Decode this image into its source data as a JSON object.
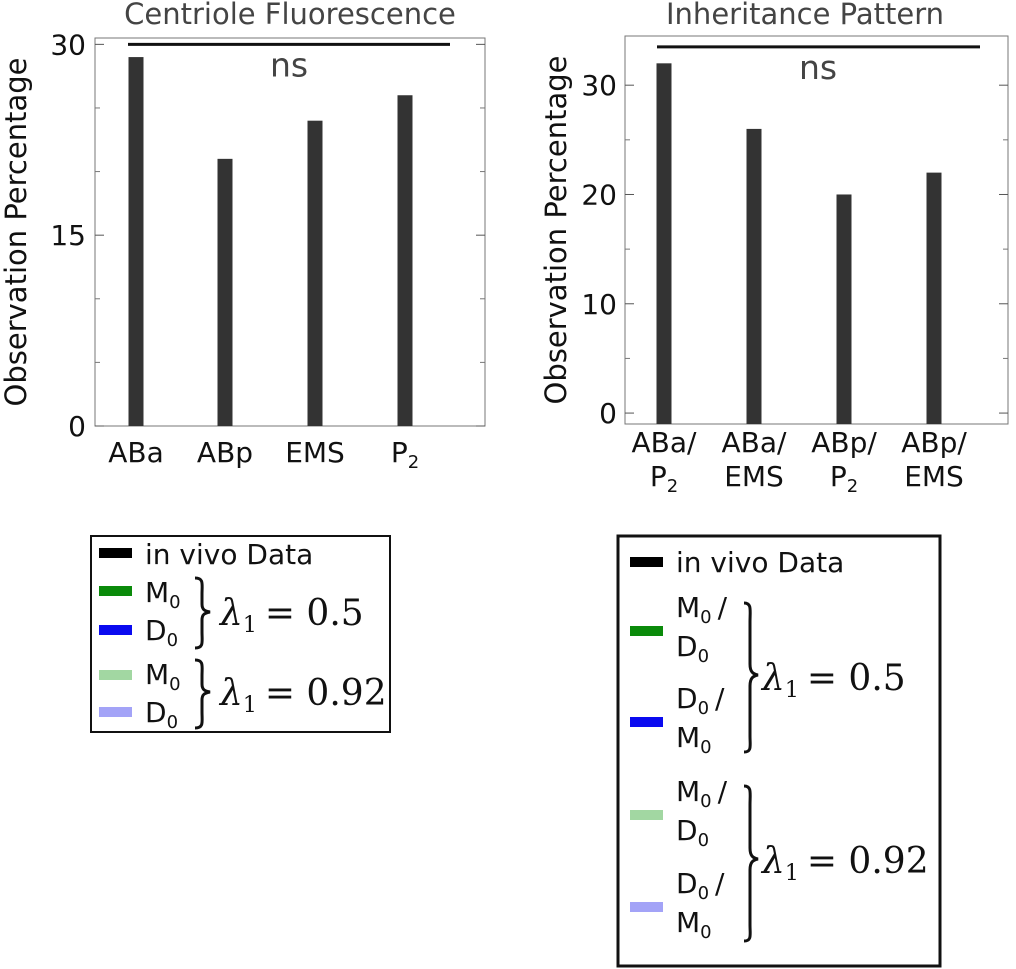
{
  "chart_data": [
    {
      "type": "bar",
      "title": "Centriole Fluorescence",
      "ylabel": "Observation Percentage",
      "xlabel": "",
      "categories": [
        "ABa",
        "ABp",
        "EMS",
        "P2"
      ],
      "category_labels": [
        {
          "line1": "ABa",
          "sub": ""
        },
        {
          "line1": "ABp",
          "sub": ""
        },
        {
          "line1": "EMS",
          "sub": ""
        },
        {
          "line1": "P",
          "sub": "2"
        }
      ],
      "series": [
        {
          "name": "in vivo Data",
          "color": "#333333",
          "values": [
            29,
            21,
            24,
            26
          ]
        }
      ],
      "ylim": [
        0,
        30.5
      ],
      "yticks": [
        0,
        15,
        30
      ],
      "minor_yticks": [
        5,
        10,
        20,
        25
      ],
      "annotation": "ns",
      "significance_bar_value": 30
    },
    {
      "type": "bar",
      "title": "Inheritance Pattern",
      "ylabel": "Observation Percentage",
      "xlabel": "",
      "categories": [
        "ABa/P2",
        "ABa/EMS",
        "ABp/P2",
        "ABp/EMS"
      ],
      "category_labels": [
        {
          "line1": "ABa/",
          "line2": "P",
          "sub": "2"
        },
        {
          "line1": "ABa/",
          "line2": "EMS",
          "sub": ""
        },
        {
          "line1": "ABp/",
          "line2": "P",
          "sub": "2"
        },
        {
          "line1": "ABp/",
          "line2": "EMS",
          "sub": ""
        }
      ],
      "series": [
        {
          "name": "in vivo Data",
          "color": "#333333",
          "values": [
            32,
            26,
            20,
            22
          ]
        }
      ],
      "ylim": [
        -1,
        34.5
      ],
      "yticks": [
        0,
        10,
        20,
        30
      ],
      "minor_yticks": [
        5,
        15,
        25
      ],
      "annotation": "ns",
      "significance_bar_value": 33.5
    }
  ],
  "legends": [
    {
      "entries": [
        {
          "label": "in vivo Data",
          "color": "#000000"
        },
        {
          "label": "M",
          "sub": "0",
          "color": "#0a8a0a"
        },
        {
          "label": "D",
          "sub": "0",
          "color": "#0a0af0"
        },
        {
          "label": "M",
          "sub": "0",
          "color": "#a2d7a2"
        },
        {
          "label": "D",
          "sub": "0",
          "color": "#a3a3f7"
        }
      ],
      "groups": [
        {
          "lambda_text": "λ",
          "lambda_sub": "1",
          "equals": "= 0.5"
        },
        {
          "lambda_text": "λ",
          "lambda_sub": "1",
          "equals": "= 0.92"
        }
      ]
    },
    {
      "entries": [
        {
          "label": "in vivo Data",
          "color": "#000000"
        },
        {
          "line1": "M",
          "sub1": "0",
          "slash": "/",
          "line2": "D",
          "sub2": "0",
          "color": "#0a8a0a"
        },
        {
          "line1": "D",
          "sub1": "0",
          "slash": "/",
          "line2": "M",
          "sub2": "0",
          "color": "#0a0af0"
        },
        {
          "line1": "M",
          "sub1": "0",
          "slash": "/",
          "line2": "D",
          "sub2": "0",
          "color": "#a2d7a2"
        },
        {
          "line1": "D",
          "sub1": "0",
          "slash": "/",
          "line2": "M",
          "sub2": "0",
          "color": "#a3a3f7"
        }
      ],
      "groups": [
        {
          "lambda_text": "λ",
          "lambda_sub": "1",
          "equals": "= 0.5"
        },
        {
          "lambda_text": "λ",
          "lambda_sub": "1",
          "equals": "= 0.92"
        }
      ]
    }
  ]
}
